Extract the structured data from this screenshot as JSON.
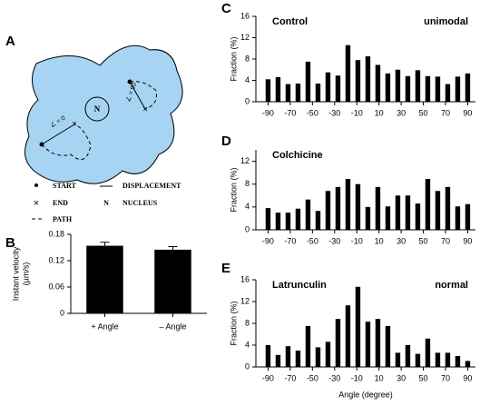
{
  "chart_data": [
    {
      "type": "bar",
      "panel": "B",
      "categories": [
        "+ Angle",
        "– Angle"
      ],
      "values": [
        0.154,
        0.145
      ],
      "errors": [
        0.008,
        0.007
      ],
      "color": "#000000",
      "ylabel": [
        "Instant velocity",
        "(µm/s)"
      ],
      "ylim": [
        0,
        0.18
      ],
      "yticks": [
        0,
        0.06,
        0.12,
        0.18
      ]
    },
    {
      "type": "histogram",
      "panel": "C",
      "annotations": [
        "Control",
        "unimodal"
      ],
      "ylabel": "Fraction (%)",
      "x": [
        -90,
        -81,
        -72,
        -63,
        -54,
        -45,
        -36,
        -27,
        -18,
        -9,
        0,
        9,
        18,
        27,
        36,
        45,
        54,
        63,
        72,
        81,
        90
      ],
      "values": [
        4.2,
        4.6,
        3.3,
        3.4,
        7.5,
        3.4,
        5.5,
        4.9,
        10.6,
        7.8,
        8.5,
        6.9,
        5.3,
        6.0,
        4.8,
        5.9,
        4.8,
        4.7,
        3.3,
        4.7,
        5.3
      ],
      "color": "#000000",
      "xlim": [
        -101,
        97
      ],
      "xticks": [
        -90,
        -70,
        -50,
        -30,
        -10,
        10,
        30,
        50,
        70,
        90
      ],
      "ylim": [
        0,
        16
      ],
      "yticks": [
        0,
        4,
        8,
        12,
        16
      ]
    },
    {
      "type": "histogram",
      "panel": "D",
      "annotations": [
        "Colchicine"
      ],
      "ylabel": "Fraction (%)",
      "x": [
        -90,
        -81,
        -72,
        -63,
        -54,
        -45,
        -36,
        -27,
        -18,
        -9,
        0,
        9,
        18,
        27,
        36,
        45,
        54,
        63,
        72,
        81,
        90
      ],
      "values": [
        3.8,
        3.0,
        3.0,
        3.7,
        5.3,
        3.3,
        6.8,
        7.5,
        8.9,
        8.0,
        4.0,
        7.5,
        4.1,
        6.0,
        6.0,
        4.6,
        8.9,
        6.8,
        7.5,
        4.1,
        4.5
      ],
      "color": "#000000",
      "xlim": [
        -101,
        97
      ],
      "xticks": [
        -90,
        -70,
        -50,
        -30,
        -10,
        10,
        30,
        50,
        70,
        90
      ],
      "ylim": [
        0,
        14
      ],
      "yticks": [
        0,
        4,
        8,
        12
      ]
    },
    {
      "type": "histogram",
      "panel": "E",
      "annotations": [
        "Latrunculin",
        "normal"
      ],
      "ylabel": "Fraction (%)",
      "xlabel": "Angle (degree)",
      "x": [
        -90,
        -81,
        -72,
        -63,
        -54,
        -45,
        -36,
        -27,
        -18,
        -9,
        0,
        9,
        18,
        27,
        36,
        45,
        54,
        63,
        72,
        81,
        90
      ],
      "values": [
        4.0,
        2.2,
        3.8,
        3.0,
        7.5,
        3.6,
        4.6,
        8.8,
        11.3,
        14.7,
        8.3,
        8.8,
        7.5,
        2.6,
        4.0,
        2.4,
        5.2,
        2.6,
        2.6,
        2.0,
        1.1
      ],
      "color": "#000000",
      "xlim": [
        -101,
        97
      ],
      "xticks": [
        -90,
        -70,
        -50,
        -30,
        -10,
        10,
        30,
        50,
        70,
        90
      ],
      "ylim": [
        0,
        16
      ],
      "yticks": [
        0,
        4,
        8,
        12,
        16
      ]
    }
  ],
  "diagram": {
    "panel": "A",
    "nucleus": "N",
    "angle_labels": [
      "∠ = 0",
      "∠ = 90"
    ],
    "legend": [
      {
        "label": "START"
      },
      {
        "label": "END"
      },
      {
        "label": "PATH"
      },
      {
        "label": "DISPLACEMENT"
      },
      {
        "symbol": "N",
        "label": "NUCLEUS"
      }
    ]
  }
}
